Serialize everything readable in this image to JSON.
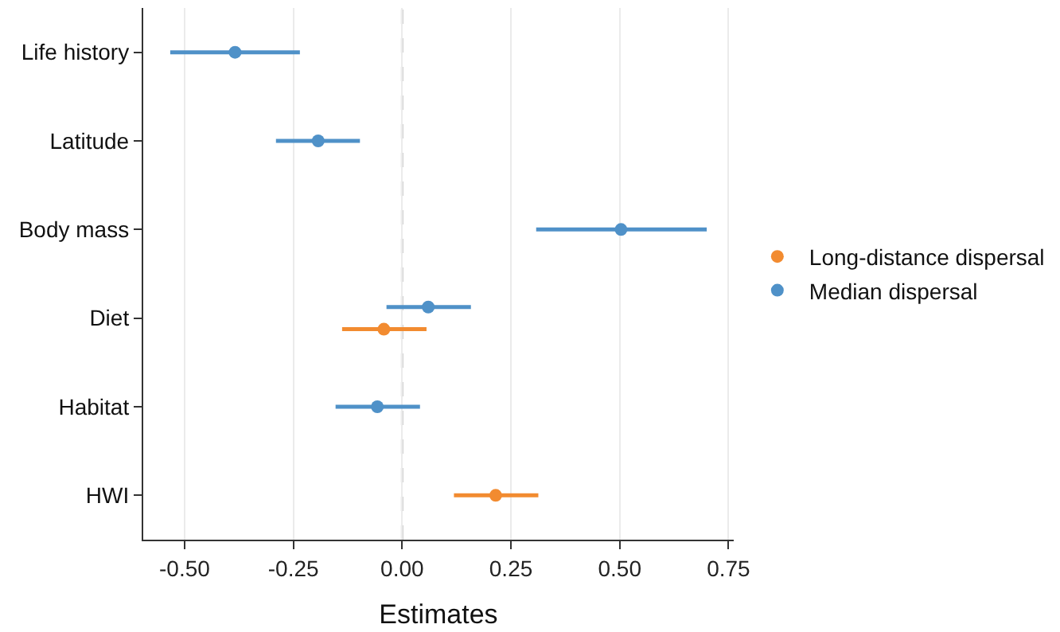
{
  "chart_data": {
    "type": "scatter",
    "orientation": "horizontal",
    "xlabel": "Estimates",
    "categories": [
      "Life history",
      "Latitude",
      "Body mass",
      "Diet",
      "Habitat",
      "HWI"
    ],
    "series": [
      {
        "name": "Long-distance dispersal",
        "color": "#f28b30",
        "values": [
          null,
          null,
          null,
          -0.042,
          null,
          0.215
        ],
        "errors": [
          null,
          null,
          null,
          [
            -0.138,
            0.056
          ],
          null,
          [
            0.119,
            0.313
          ]
        ]
      },
      {
        "name": "Median dispersal",
        "color": "#4f91c8",
        "values": [
          -0.384,
          -0.193,
          0.503,
          0.06,
          -0.057,
          null
        ],
        "errors": [
          [
            -0.533,
            -0.235
          ],
          [
            -0.29,
            -0.097
          ],
          [
            0.308,
            0.7
          ],
          [
            -0.036,
            0.158
          ],
          [
            -0.153,
            0.041
          ],
          null
        ]
      }
    ],
    "xlim": [
      -0.595,
      0.762
    ],
    "xticks": [
      {
        "value": -0.5,
        "label": "-0.50"
      },
      {
        "value": -0.25,
        "label": "-0.25"
      },
      {
        "value": 0,
        "label": "0.00"
      },
      {
        "value": 0.25,
        "label": "0.25"
      },
      {
        "value": 0.5,
        "label": "0.50"
      },
      {
        "value": 0.75,
        "label": "0.75"
      }
    ],
    "ref_lines": [
      {
        "axis": "x",
        "value": 0,
        "color": "#c8c8c8",
        "line_style": "dashed"
      }
    ],
    "grid": "x",
    "legend": "right",
    "marker": "circle"
  }
}
